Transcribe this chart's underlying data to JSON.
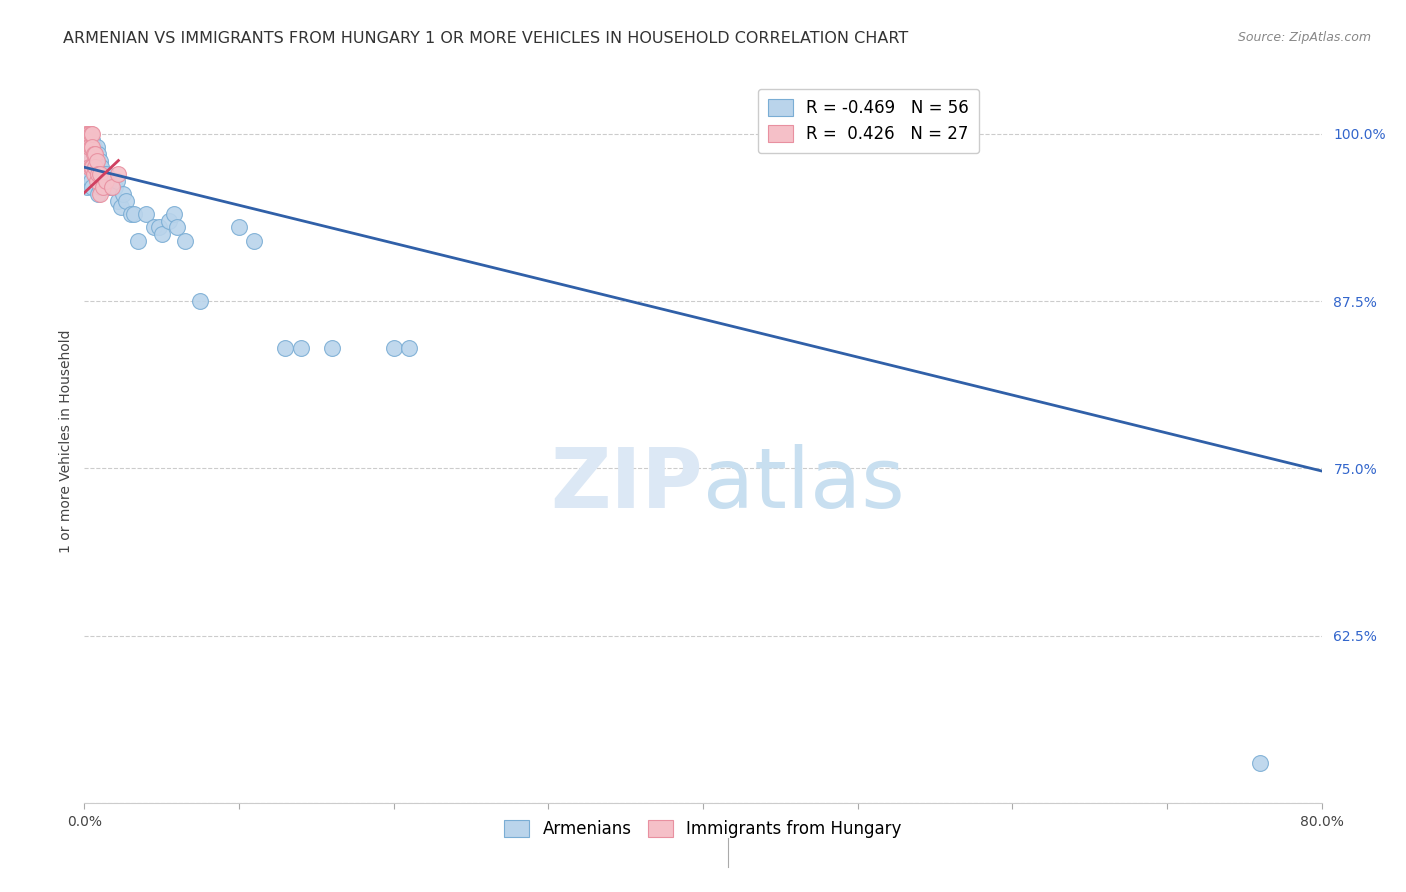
{
  "title": "ARMENIAN VS IMMIGRANTS FROM HUNGARY 1 OR MORE VEHICLES IN HOUSEHOLD CORRELATION CHART",
  "source": "Source: ZipAtlas.com",
  "ylabel": "1 or more Vehicles in Household",
  "xlim": [
    0.0,
    0.8
  ],
  "ylim": [
    0.5,
    1.04
  ],
  "xticks": [
    0.0,
    0.1,
    0.2,
    0.3,
    0.4,
    0.5,
    0.6,
    0.7,
    0.8
  ],
  "xticklabels": [
    "0.0%",
    "",
    "",
    "",
    "",
    "",
    "",
    "",
    "80.0%"
  ],
  "yticks": [
    0.5,
    0.625,
    0.75,
    0.875,
    1.0
  ],
  "yticklabels": [
    "",
    "62.5%",
    "75.0%",
    "87.5%",
    "100.0%"
  ],
  "blue_R": -0.469,
  "blue_N": 56,
  "pink_R": 0.426,
  "pink_N": 27,
  "blue_color": "#bad4eb",
  "blue_edge_color": "#7aadd4",
  "blue_line_color": "#3060a8",
  "pink_color": "#f5c0c8",
  "pink_edge_color": "#e890a0",
  "pink_line_color": "#d04060",
  "blue_scatter_x": [
    0.001,
    0.002,
    0.002,
    0.003,
    0.003,
    0.003,
    0.004,
    0.004,
    0.004,
    0.005,
    0.005,
    0.005,
    0.006,
    0.006,
    0.007,
    0.007,
    0.008,
    0.008,
    0.009,
    0.009,
    0.01,
    0.01,
    0.011,
    0.012,
    0.013,
    0.014,
    0.015,
    0.016,
    0.017,
    0.018,
    0.02,
    0.021,
    0.022,
    0.024,
    0.025,
    0.027,
    0.03,
    0.032,
    0.035,
    0.04,
    0.045,
    0.048,
    0.05,
    0.055,
    0.058,
    0.06,
    0.065,
    0.075,
    0.1,
    0.11,
    0.13,
    0.14,
    0.16,
    0.2,
    0.21,
    0.76
  ],
  "blue_scatter_y": [
    0.99,
    0.975,
    0.96,
    0.998,
    0.985,
    0.97,
    0.995,
    0.98,
    0.965,
    0.995,
    0.975,
    0.96,
    0.99,
    0.975,
    0.985,
    0.97,
    0.99,
    0.975,
    0.985,
    0.955,
    0.98,
    0.96,
    0.975,
    0.97,
    0.965,
    0.97,
    0.96,
    0.965,
    0.96,
    0.96,
    0.96,
    0.965,
    0.95,
    0.945,
    0.955,
    0.95,
    0.94,
    0.94,
    0.92,
    0.94,
    0.93,
    0.93,
    0.925,
    0.935,
    0.94,
    0.93,
    0.92,
    0.875,
    0.93,
    0.92,
    0.84,
    0.84,
    0.84,
    0.84,
    0.84,
    0.53
  ],
  "pink_scatter_x": [
    0.001,
    0.001,
    0.002,
    0.002,
    0.002,
    0.003,
    0.003,
    0.003,
    0.004,
    0.004,
    0.004,
    0.005,
    0.005,
    0.005,
    0.006,
    0.006,
    0.007,
    0.007,
    0.008,
    0.008,
    0.009,
    0.01,
    0.01,
    0.012,
    0.014,
    0.018,
    0.022
  ],
  "pink_scatter_y": [
    1.0,
    0.995,
    1.0,
    0.995,
    0.985,
    1.0,
    0.99,
    0.975,
    1.0,
    0.99,
    0.975,
    1.0,
    0.99,
    0.975,
    0.985,
    0.97,
    0.985,
    0.975,
    0.98,
    0.965,
    0.97,
    0.97,
    0.955,
    0.96,
    0.965,
    0.96,
    0.97
  ],
  "blue_line_x": [
    0.0,
    0.8
  ],
  "blue_line_y": [
    0.975,
    0.748
  ],
  "pink_line_x": [
    0.0,
    0.022
  ],
  "pink_line_y": [
    0.956,
    0.98
  ],
  "watermark_zip": "ZIP",
  "watermark_atlas": "atlas",
  "legend_blue_label": "Armenians",
  "legend_pink_label": "Immigrants from Hungary",
  "title_fontsize": 11.5,
  "axis_label_fontsize": 10,
  "tick_fontsize": 10,
  "legend_fontsize": 12
}
